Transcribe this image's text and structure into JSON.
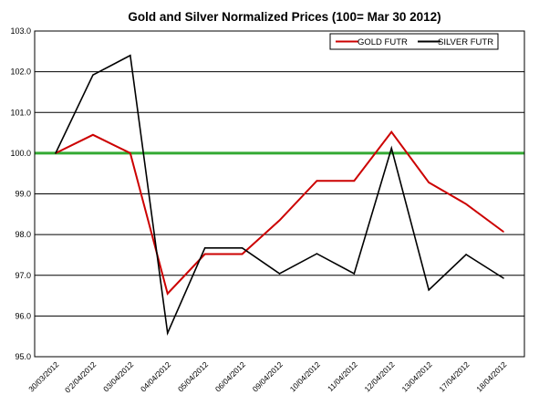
{
  "chart_data": {
    "type": "line",
    "title": "Gold and Silver Normalized Prices  (100= Mar 30 2012)",
    "categories": [
      "30/03/2012",
      "02/04/2012",
      "03/04/2012",
      "04/04/2012",
      "05/04/2012",
      "06/04/2012",
      "09/04/2012",
      "10/04/2012",
      "11/04/2012",
      "12/04/2012",
      "13/04/2012",
      "17/04/2012",
      "18/04/2012"
    ],
    "x_tick_labels": [
      "30/03/2012",
      "0'2/04/2012",
      "03/04/2012",
      "04/04/2012",
      "05/04/2012",
      "06/04/2012",
      "09/04/2012",
      "10/04/2012",
      "11/04/2012",
      "12/04/2012",
      "13/04/2012",
      "17/04/2012",
      "18/04/2012"
    ],
    "series": [
      {
        "name": "GOLD  FUTR",
        "color": "#cc0000",
        "values": [
          100.0,
          100.45,
          100.0,
          96.55,
          97.52,
          97.52,
          98.35,
          99.32,
          99.32,
          100.52,
          99.28,
          98.75,
          98.07
        ]
      },
      {
        "name": "SILVER  FUTR",
        "color": "#000000",
        "values": [
          100.0,
          101.92,
          102.4,
          95.58,
          97.67,
          97.67,
          97.04,
          97.53,
          97.04,
          100.12,
          96.64,
          97.51,
          96.93
        ]
      }
    ],
    "reference_line": {
      "value": 100.0,
      "color": "#33aa33"
    },
    "ylim": [
      95.0,
      103.0
    ],
    "yticks": [
      "95.0",
      "96.0",
      "97.0",
      "98.0",
      "99.0",
      "100.0",
      "101.0",
      "102.0",
      "103.0"
    ],
    "grid": true,
    "legend_position": "top-right",
    "xlabel": "",
    "ylabel": ""
  }
}
